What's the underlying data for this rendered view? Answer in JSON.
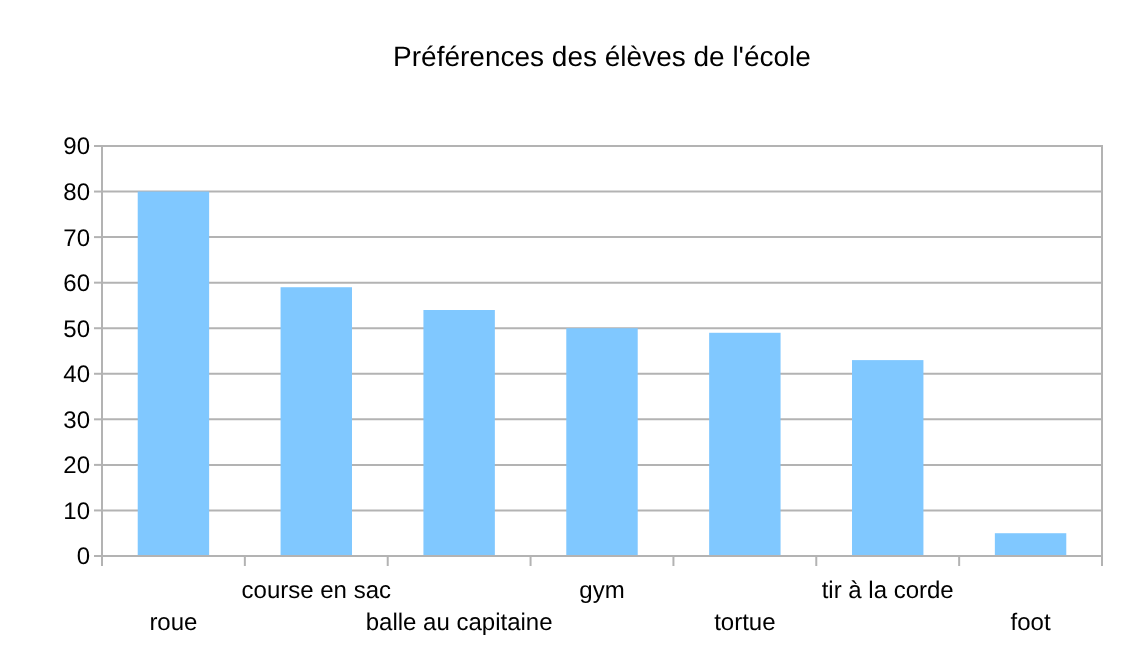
{
  "chart_data": {
    "type": "bar",
    "title": "Préférences des élèves de l'école",
    "categories": [
      "roue",
      "course en sac",
      "balle au capitaine",
      "gym",
      "tortue",
      "tir à la corde",
      "foot"
    ],
    "values": [
      80,
      59,
      54,
      50,
      49,
      43,
      5
    ],
    "color": "#80c8ff",
    "ylim": [
      0,
      90
    ],
    "yticks": [
      0,
      10,
      20,
      30,
      40,
      50,
      60,
      70,
      80,
      90
    ],
    "grid": "y"
  }
}
